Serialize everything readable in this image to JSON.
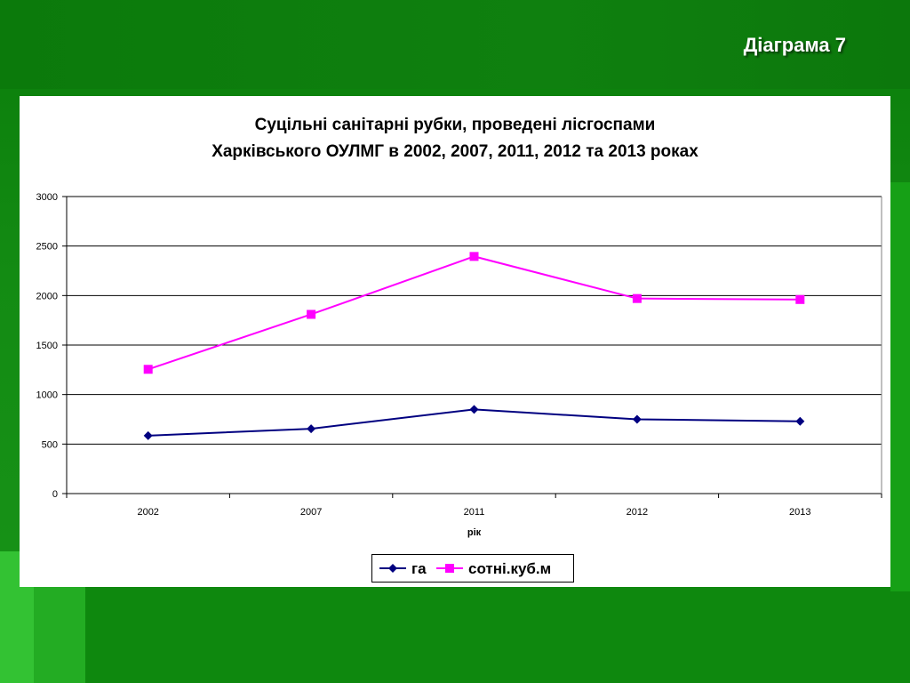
{
  "slide": {
    "title": "Діаграма 7"
  },
  "chart_data": {
    "type": "line",
    "title_lines": [
      "Суцільні санітарні рубки, проведені лісгоспами",
      "Харківського ОУЛМГ в 2002, 2007, 2011, 2012 та 2013 роках"
    ],
    "categories": [
      "2002",
      "2007",
      "2011",
      "2012",
      "2013"
    ],
    "xlabel": "рік",
    "ylabel": "",
    "ylim": [
      0,
      3000
    ],
    "yticks": [
      0,
      500,
      1000,
      1500,
      2000,
      2500,
      3000
    ],
    "grid": true,
    "legend_position": "bottom",
    "series": [
      {
        "name": "га",
        "values": [
          585,
          655,
          850,
          750,
          730
        ],
        "color": "#000080",
        "marker": "diamond"
      },
      {
        "name": "сотні.куб.м",
        "values": [
          1255,
          1810,
          2395,
          1970,
          1960
        ],
        "color": "#ff00ff",
        "marker": "square"
      }
    ]
  }
}
